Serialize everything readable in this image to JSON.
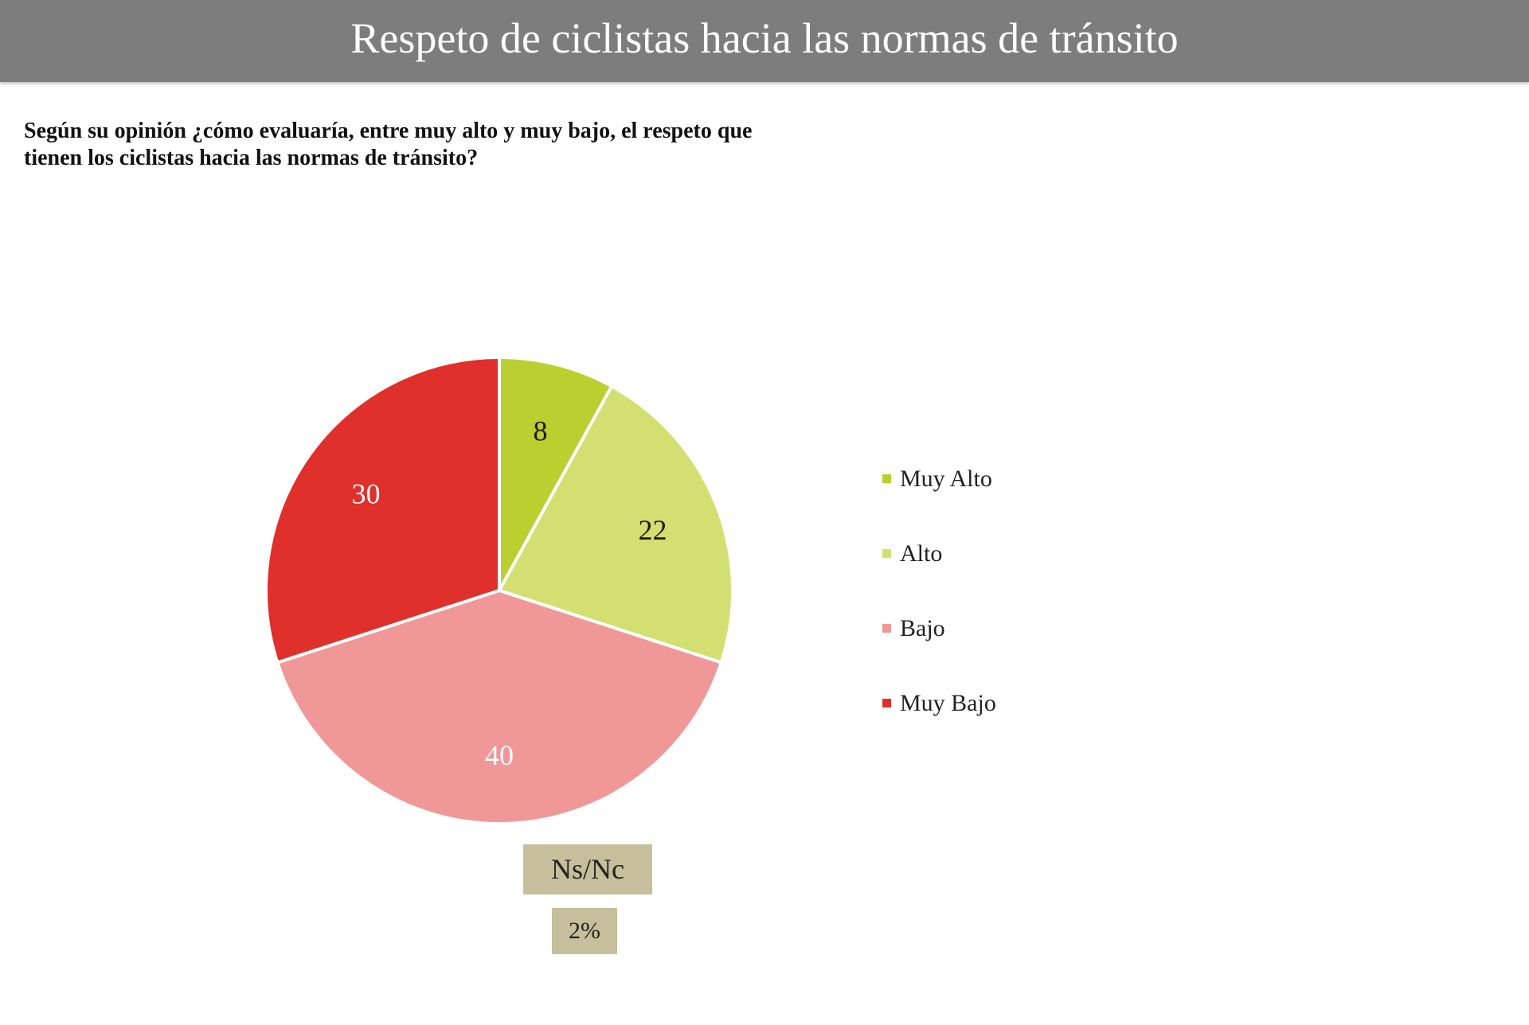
{
  "header": {
    "title": "Respeto de ciclistas hacia las normas de tránsito"
  },
  "question": "Según su opinión ¿cómo evaluaría, entre muy alto y muy bajo, el respeto que tienen los ciclistas hacia las normas de tránsito?",
  "chart_data": {
    "type": "pie",
    "categories": [
      "Muy Alto",
      "Alto",
      "Bajo",
      "Muy Bajo"
    ],
    "values": [
      8,
      22,
      40,
      30
    ],
    "colors": [
      "#b9d030",
      "#d3e071",
      "#f09898",
      "#e0302c"
    ],
    "label_colors": [
      "#1a1a1a",
      "#1a1a1a",
      "#ffffff",
      "#ffffff"
    ],
    "start_angle_deg": 0,
    "direction": "clockwise",
    "legend_position": "right"
  },
  "no_response": {
    "label": "Ns/Nc",
    "value": "2%"
  }
}
